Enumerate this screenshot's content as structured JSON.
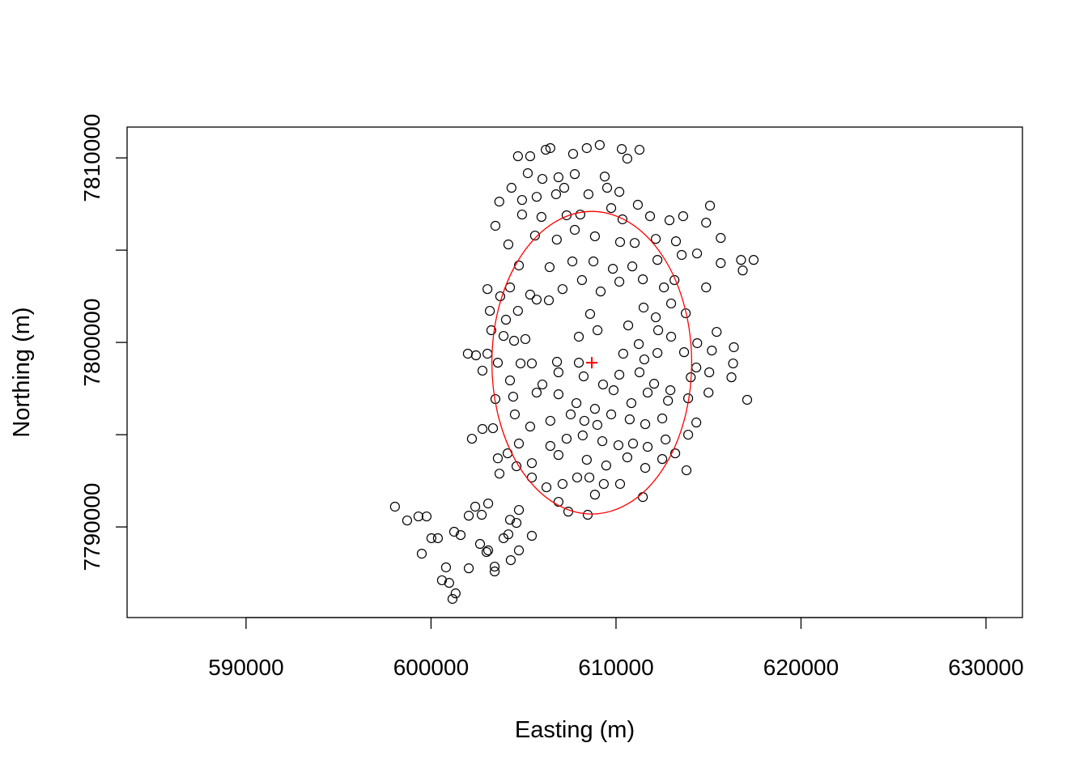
{
  "chart_data": {
    "type": "scatter",
    "title": "",
    "xlabel": "Easting (m)",
    "ylabel": "Northing (m)",
    "xlim": [
      583570,
      631970
    ],
    "ylim": [
      7785090,
      7811670
    ],
    "x_ticks": [
      590000,
      600000,
      610000,
      620000,
      630000
    ],
    "x_tick_labels": [
      "590000",
      "600000",
      "610000",
      "620000",
      "630000"
    ],
    "y_ticks": [
      7790000,
      7795000,
      7800000,
      7805000,
      7810000
    ],
    "y_tick_labels": [
      "7790000",
      "",
      "7800000",
      "",
      "7810000"
    ],
    "grid": false,
    "point_color": "#000000",
    "overlay_color": "#ff0000",
    "ellipse": {
      "center": [
        608690,
        7798900
      ],
      "semi_axes": [
        5400,
        8200
      ]
    },
    "center_marker": [
      608690,
      7798900
    ],
    "points": [
      [
        598050,
        7791100
      ],
      [
        598710,
        7790350
      ],
      [
        599320,
        7790570
      ],
      [
        599760,
        7790570
      ],
      [
        599500,
        7788550
      ],
      [
        600020,
        7789390
      ],
      [
        600370,
        7789390
      ],
      [
        600810,
        7787810
      ],
      [
        600590,
        7787110
      ],
      [
        600980,
        7786970
      ],
      [
        601160,
        7786100
      ],
      [
        601330,
        7786400
      ],
      [
        601250,
        7789740
      ],
      [
        601600,
        7789560
      ],
      [
        602040,
        7790610
      ],
      [
        602390,
        7791100
      ],
      [
        602740,
        7790660
      ],
      [
        603090,
        7791270
      ],
      [
        602650,
        7789080
      ],
      [
        603000,
        7788640
      ],
      [
        603440,
        7787850
      ],
      [
        603440,
        7787590
      ],
      [
        602040,
        7787760
      ],
      [
        603920,
        7789390
      ],
      [
        604270,
        7790390
      ],
      [
        604620,
        7790220
      ],
      [
        604750,
        7790920
      ],
      [
        604310,
        7788200
      ],
      [
        604750,
        7788730
      ],
      [
        605450,
        7789520
      ],
      [
        603090,
        7788730
      ],
      [
        604180,
        7789600
      ],
      [
        604700,
        7810090
      ],
      [
        605360,
        7810090
      ],
      [
        606200,
        7810440
      ],
      [
        606450,
        7810530
      ],
      [
        607680,
        7810220
      ],
      [
        608420,
        7810530
      ],
      [
        609120,
        7810700
      ],
      [
        610310,
        7810480
      ],
      [
        611270,
        7810440
      ],
      [
        610610,
        7809960
      ],
      [
        605230,
        7809170
      ],
      [
        606020,
        7808860
      ],
      [
        606890,
        7808950
      ],
      [
        607770,
        7809120
      ],
      [
        609390,
        7808990
      ],
      [
        609520,
        7808380
      ],
      [
        604350,
        7808380
      ],
      [
        603690,
        7807630
      ],
      [
        604920,
        7807720
      ],
      [
        605710,
        7807890
      ],
      [
        606760,
        7808030
      ],
      [
        607200,
        7808380
      ],
      [
        608510,
        7808030
      ],
      [
        610180,
        7808160
      ],
      [
        611180,
        7807460
      ],
      [
        603480,
        7806320
      ],
      [
        604920,
        7806930
      ],
      [
        605970,
        7806800
      ],
      [
        607330,
        7806890
      ],
      [
        608070,
        7806930
      ],
      [
        609740,
        7807280
      ],
      [
        610350,
        7806670
      ],
      [
        611840,
        7806840
      ],
      [
        612890,
        7806620
      ],
      [
        613630,
        7806840
      ],
      [
        615080,
        7807410
      ],
      [
        605620,
        7805790
      ],
      [
        606800,
        7805570
      ],
      [
        607770,
        7806100
      ],
      [
        608860,
        7805750
      ],
      [
        610220,
        7805440
      ],
      [
        611010,
        7805390
      ],
      [
        612150,
        7805610
      ],
      [
        613240,
        7805480
      ],
      [
        614870,
        7806490
      ],
      [
        615660,
        7805660
      ],
      [
        604180,
        7805310
      ],
      [
        604750,
        7804170
      ],
      [
        606410,
        7804080
      ],
      [
        607640,
        7804390
      ],
      [
        608780,
        7804390
      ],
      [
        609830,
        7803990
      ],
      [
        610880,
        7804120
      ],
      [
        612240,
        7804470
      ],
      [
        613550,
        7804740
      ],
      [
        614380,
        7804820
      ],
      [
        615660,
        7804300
      ],
      [
        616760,
        7804470
      ],
      [
        617440,
        7804470
      ],
      [
        616850,
        7803900
      ],
      [
        603050,
        7802890
      ],
      [
        603740,
        7802500
      ],
      [
        604270,
        7802980
      ],
      [
        605360,
        7802590
      ],
      [
        606370,
        7802280
      ],
      [
        607110,
        7802890
      ],
      [
        608160,
        7803380
      ],
      [
        609170,
        7802760
      ],
      [
        610180,
        7803290
      ],
      [
        611450,
        7803420
      ],
      [
        612590,
        7802980
      ],
      [
        613160,
        7803380
      ],
      [
        614870,
        7802980
      ],
      [
        603180,
        7801710
      ],
      [
        604050,
        7801230
      ],
      [
        604700,
        7801710
      ],
      [
        605710,
        7802320
      ],
      [
        608600,
        7801540
      ],
      [
        611490,
        7801890
      ],
      [
        612150,
        7801360
      ],
      [
        612980,
        7802110
      ],
      [
        613770,
        7801580
      ],
      [
        603260,
        7800660
      ],
      [
        603920,
        7800350
      ],
      [
        604490,
        7800090
      ],
      [
        605100,
        7800180
      ],
      [
        607990,
        7800310
      ],
      [
        609000,
        7800660
      ],
      [
        610660,
        7800920
      ],
      [
        611230,
        7799910
      ],
      [
        612280,
        7800660
      ],
      [
        612980,
        7800310
      ],
      [
        614390,
        7799960
      ],
      [
        615440,
        7800570
      ],
      [
        615180,
        7799560
      ],
      [
        616370,
        7799740
      ],
      [
        601990,
        7799390
      ],
      [
        602430,
        7799300
      ],
      [
        603050,
        7799390
      ],
      [
        602780,
        7798470
      ],
      [
        603610,
        7798900
      ],
      [
        604840,
        7798860
      ],
      [
        605450,
        7798860
      ],
      [
        606810,
        7798950
      ],
      [
        607990,
        7798900
      ],
      [
        610390,
        7799390
      ],
      [
        611530,
        7799080
      ],
      [
        612240,
        7799430
      ],
      [
        613680,
        7799470
      ],
      [
        614340,
        7798640
      ],
      [
        615040,
        7798380
      ],
      [
        616330,
        7798860
      ],
      [
        616240,
        7798110
      ],
      [
        604270,
        7797940
      ],
      [
        606020,
        7797720
      ],
      [
        606890,
        7798380
      ],
      [
        608250,
        7798160
      ],
      [
        609300,
        7797720
      ],
      [
        610180,
        7798250
      ],
      [
        611270,
        7798380
      ],
      [
        612060,
        7797760
      ],
      [
        612940,
        7797410
      ],
      [
        614040,
        7798110
      ],
      [
        615000,
        7797280
      ],
      [
        617090,
        7796890
      ],
      [
        603480,
        7796930
      ],
      [
        604440,
        7797060
      ],
      [
        605710,
        7797280
      ],
      [
        606890,
        7797190
      ],
      [
        607860,
        7796710
      ],
      [
        608860,
        7796400
      ],
      [
        609870,
        7797410
      ],
      [
        610830,
        7796710
      ],
      [
        611710,
        7797280
      ],
      [
        612810,
        7796840
      ],
      [
        613900,
        7796970
      ],
      [
        604530,
        7796100
      ],
      [
        605360,
        7795440
      ],
      [
        606450,
        7795750
      ],
      [
        607550,
        7796100
      ],
      [
        608290,
        7795750
      ],
      [
        608990,
        7795530
      ],
      [
        609740,
        7796100
      ],
      [
        610740,
        7795830
      ],
      [
        611580,
        7795570
      ],
      [
        612500,
        7795880
      ],
      [
        614340,
        7795660
      ],
      [
        602210,
        7794780
      ],
      [
        602780,
        7795310
      ],
      [
        603350,
        7795350
      ],
      [
        604750,
        7794520
      ],
      [
        606450,
        7794390
      ],
      [
        607330,
        7794780
      ],
      [
        608200,
        7794960
      ],
      [
        609260,
        7794650
      ],
      [
        610130,
        7794430
      ],
      [
        610920,
        7794520
      ],
      [
        611710,
        7794340
      ],
      [
        612680,
        7794740
      ],
      [
        613900,
        7795000
      ],
      [
        604140,
        7793990
      ],
      [
        605450,
        7793460
      ],
      [
        606890,
        7793900
      ],
      [
        608420,
        7793640
      ],
      [
        609470,
        7793330
      ],
      [
        610610,
        7793770
      ],
      [
        611580,
        7793200
      ],
      [
        612500,
        7793680
      ],
      [
        613200,
        7793990
      ],
      [
        613810,
        7793070
      ],
      [
        603610,
        7793720
      ],
      [
        604620,
        7793290
      ],
      [
        603700,
        7792890
      ],
      [
        605450,
        7792680
      ],
      [
        606240,
        7792150
      ],
      [
        607110,
        7792330
      ],
      [
        607900,
        7792680
      ],
      [
        608560,
        7792680
      ],
      [
        609340,
        7792330
      ],
      [
        610220,
        7792330
      ],
      [
        611450,
        7791620
      ],
      [
        608860,
        7791750
      ],
      [
        606890,
        7791360
      ],
      [
        607420,
        7790830
      ],
      [
        608470,
        7790660
      ]
    ]
  }
}
